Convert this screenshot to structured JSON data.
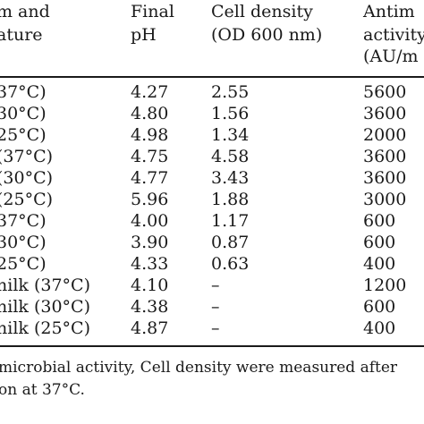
{
  "table": {
    "headers": [
      {
        "lines": [
          "m and",
          "ature"
        ]
      },
      {
        "lines": [
          "Final",
          "pH"
        ]
      },
      {
        "lines": [
          "Cell density",
          "(OD 600 nm)"
        ]
      },
      {
        "lines": [
          "Antim",
          "activity",
          "(AU/m"
        ]
      }
    ],
    "rows": [
      [
        "37°C)",
        "4.27",
        "2.55",
        "5600"
      ],
      [
        "30°C)",
        "4.80",
        "1.56",
        "3600"
      ],
      [
        "25°C)",
        "4.98",
        "1.34",
        "2000"
      ],
      [
        "(37°C)",
        "4.75",
        "4.58",
        "3600"
      ],
      [
        "(30°C)",
        "4.77",
        "3.43",
        "3600"
      ],
      [
        "(25°C)",
        "5.96",
        "1.88",
        "3000"
      ],
      [
        "37°C)",
        "4.00",
        "1.17",
        "600"
      ],
      [
        "30°C)",
        "3.90",
        "0.87",
        "600"
      ],
      [
        "25°C)",
        "4.33",
        "0.63",
        "400"
      ],
      [
        "nilk (37°C)",
        "4.10",
        "–",
        "1200"
      ],
      [
        "nilk (30°C)",
        "4.38",
        "–",
        "600"
      ],
      [
        "nilk (25°C)",
        "4.87",
        "–",
        "400"
      ]
    ]
  },
  "footnote": {
    "lines": [
      "microbial activity, Cell density were measured after",
      "on at 37°C."
    ]
  }
}
